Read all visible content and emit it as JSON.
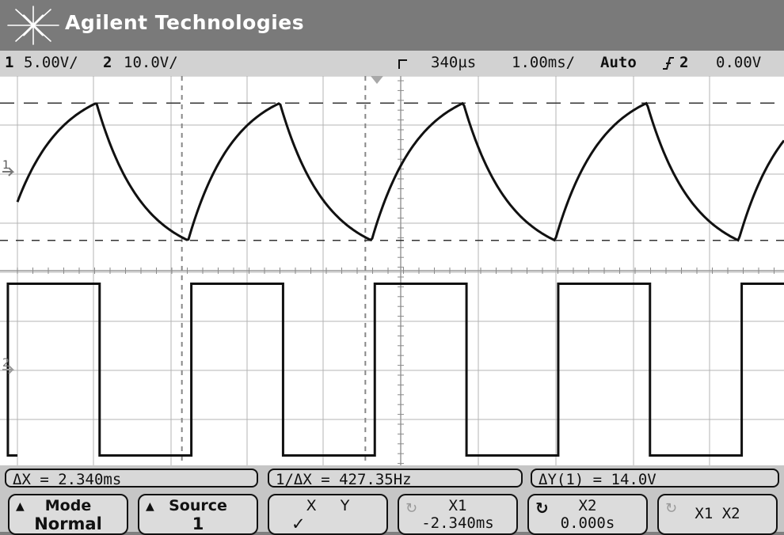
{
  "header": {
    "brand": "Agilent Technologies",
    "logo_icon": "agilent-spark-icon"
  },
  "status": {
    "ch1_num": "1",
    "ch1_scale": "5.00V/",
    "ch2_num": "2",
    "ch2_scale": "10.0V/",
    "time_delay": "340µs",
    "time_scale": "1.00ms/",
    "trigger_mode": "Auto",
    "trigger_slope_icon": "rising-edge-icon",
    "trigger_source": "2",
    "trigger_level": "0.00V"
  },
  "measurements": {
    "delta_x": "ΔX = 2.340ms",
    "inv_delta_x": "1/ΔX = 427.35Hz",
    "delta_y": "ΔY(1) = 14.0V"
  },
  "softkeys": [
    {
      "line1": "Mode",
      "line2": "Normal"
    },
    {
      "line1": "Source",
      "line2": "1"
    },
    {
      "line1": "X     Y",
      "line2": "✓"
    },
    {
      "line1": "X1",
      "line2": "-2.340ms"
    },
    {
      "line1": "X2",
      "line2": "0.000s"
    },
    {
      "line1": "X1 X2",
      "line2": ""
    }
  ],
  "chart_data": {
    "type": "line",
    "title": "",
    "xlabel": "",
    "ylabel": "",
    "grid": true,
    "x_unit": "ms",
    "xlim": [
      -4.66,
      5.34
    ],
    "series": [
      {
        "label": "1",
        "volts_per_div": 5.0,
        "shape": "RC charge/discharge (exponential triangle)",
        "min_v": -7.0,
        "max_v": 7.0,
        "period_ms": 2.34
      },
      {
        "label": "2",
        "volts_per_div": 10.0,
        "shape": "square wave",
        "low_v": -17.5,
        "high_v": 17.5,
        "period_ms": 2.34
      }
    ],
    "cursors": {
      "x1_ms": -2.34,
      "x2_ms": 0.0
    }
  }
}
